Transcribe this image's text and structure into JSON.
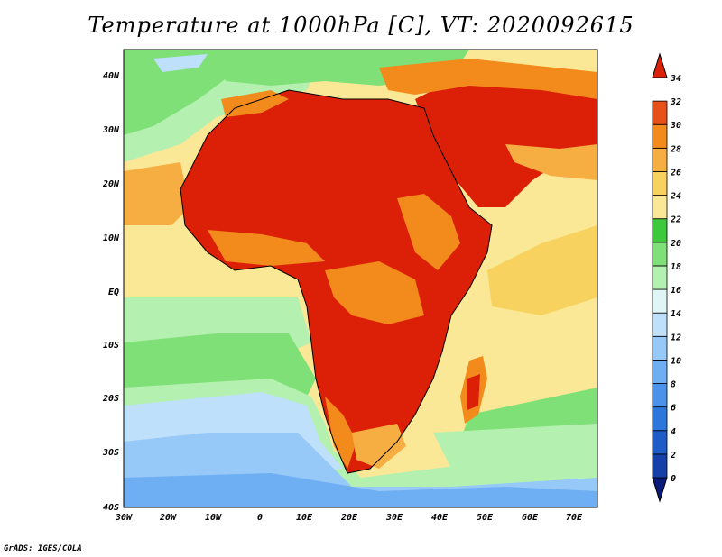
{
  "title": "Temperature at 1000hPa [C], VT: 2020092615",
  "credit": "GrADS: IGES/COLA",
  "map": {
    "lon_labels": [
      "30W",
      "20W",
      "10W",
      "0",
      "10E",
      "20E",
      "30E",
      "40E",
      "50E",
      "60E",
      "70E"
    ],
    "lat_labels": [
      "40N",
      "30N",
      "20N",
      "10N",
      "EQ",
      "10S",
      "20S",
      "30S",
      "40S"
    ]
  },
  "colorbar": {
    "levels": [
      "0",
      "2",
      "4",
      "6",
      "8",
      "10",
      "12",
      "14",
      "16",
      "18",
      "20",
      "22",
      "24",
      "26",
      "28",
      "30",
      "32",
      "34"
    ],
    "colors": [
      "#0a1a78",
      "#1440a8",
      "#1e5cc8",
      "#2c76dc",
      "#4a92ea",
      "#6eaef2",
      "#96c8f8",
      "#bee0fb",
      "#e0f6f6",
      "#b4f0b0",
      "#80e078",
      "#3ec83c",
      "#fae896",
      "#f8d25e",
      "#f6ae42",
      "#f28a1c",
      "#e8501a",
      "#dc2008"
    ]
  },
  "regions": {
    "ocean_south": "#96c8f8",
    "ocean_south_deep": "#6eaef2",
    "ocean_mid": "#b4f0b0",
    "ocean_tropical": "#fae896",
    "hot": "#dc2008",
    "warm": "#f28a1c",
    "mild": "#f6ae42"
  }
}
